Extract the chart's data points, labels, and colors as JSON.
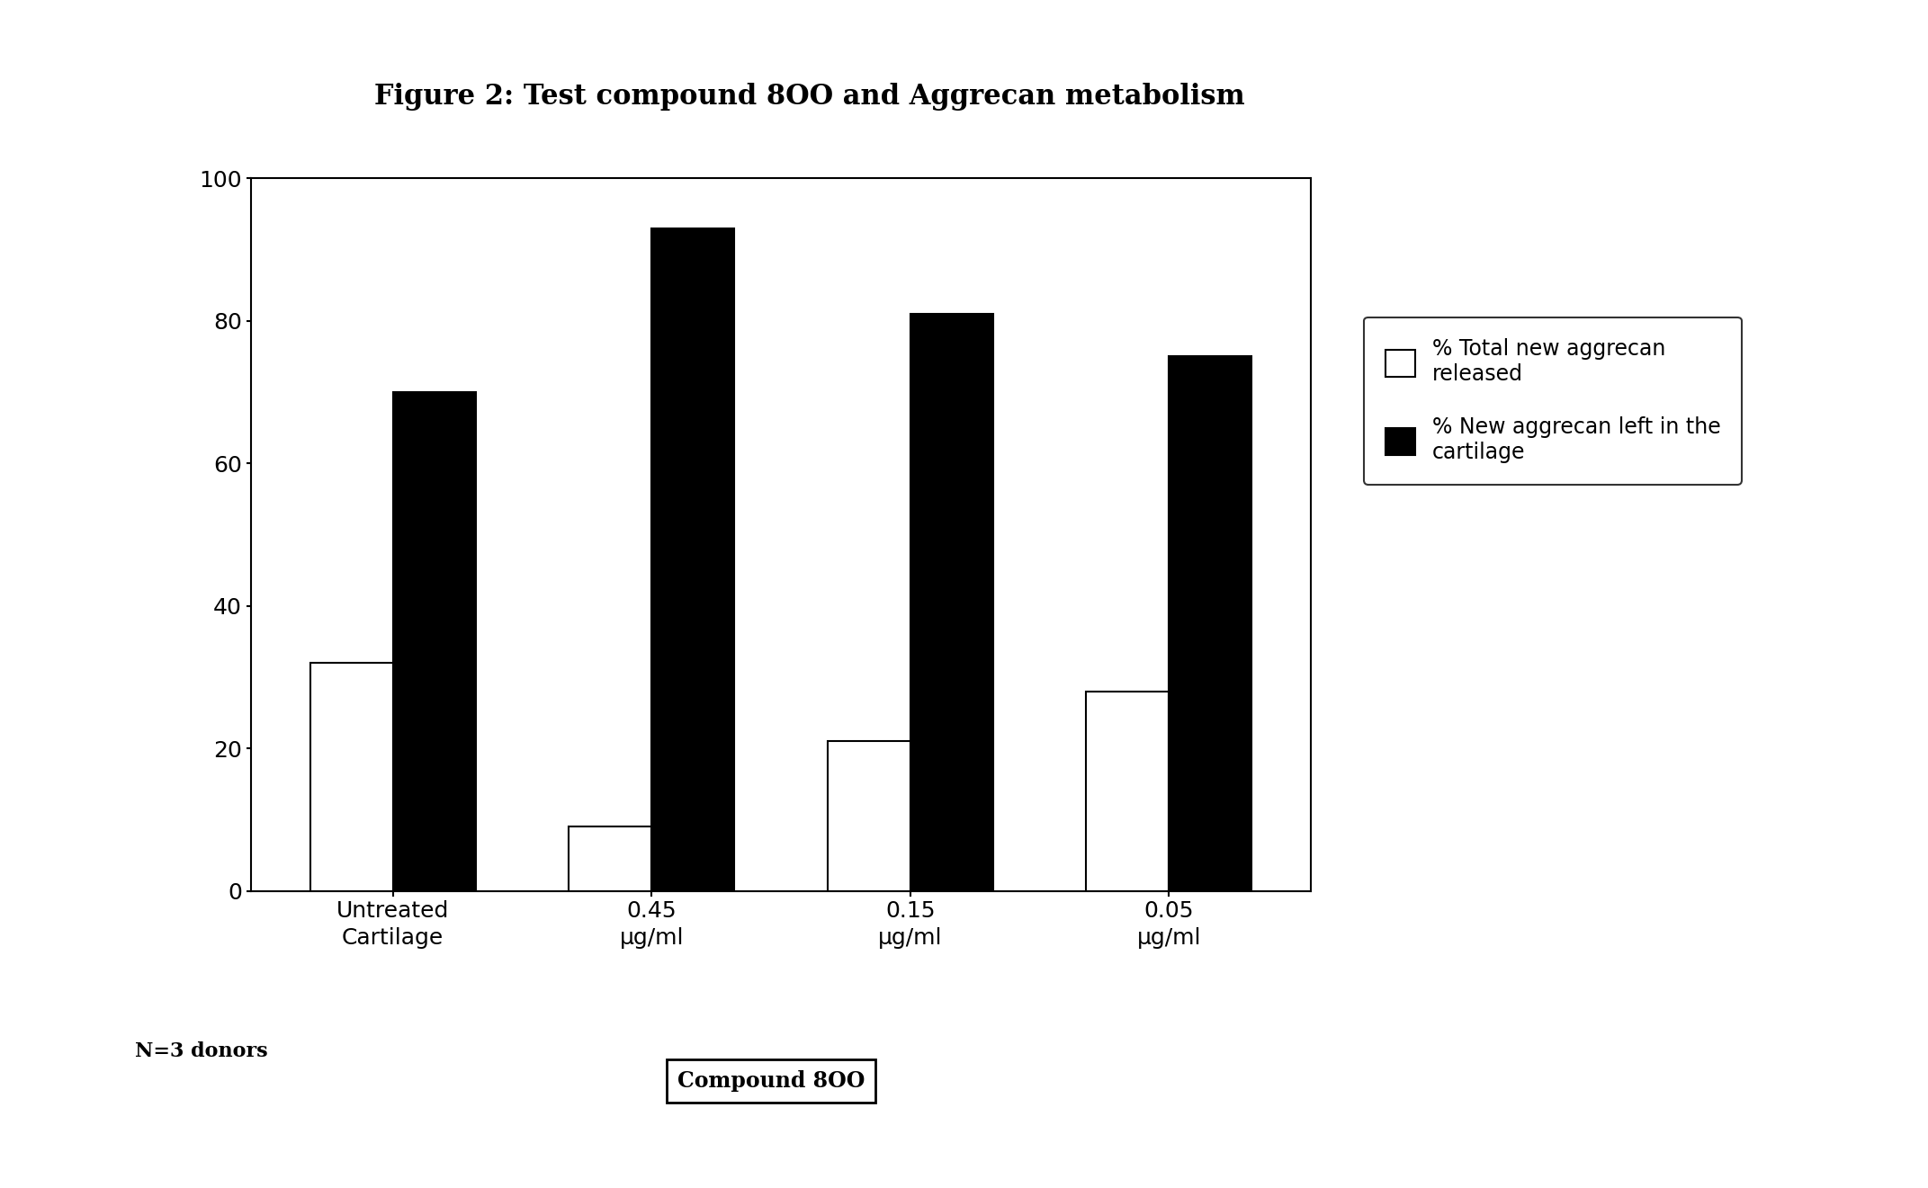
{
  "title": "Figure 2: Test compound 8OO and Aggrecan metabolism",
  "categories": [
    "Untreated\nCartilage",
    "0.45\nμg/ml",
    "0.15\nμg/ml",
    "0.05\nμg/ml"
  ],
  "white_bars": [
    32,
    9,
    21,
    28
  ],
  "black_bars": [
    70,
    93,
    81,
    75
  ],
  "ylim": [
    0,
    100
  ],
  "yticks": [
    0,
    20,
    40,
    60,
    80,
    100
  ],
  "legend_label1": "% Total new aggrecan\nreleased",
  "legend_label2": "% New aggrecan left in the\ncartilage",
  "note": "N=3 donors",
  "xlabel_box": "Compound 8OO",
  "bar_width": 0.32,
  "background_color": "#ffffff",
  "title_fontsize": 22,
  "tick_fontsize": 18,
  "legend_fontsize": 17,
  "note_fontsize": 16,
  "xlabel_box_fontsize": 17
}
